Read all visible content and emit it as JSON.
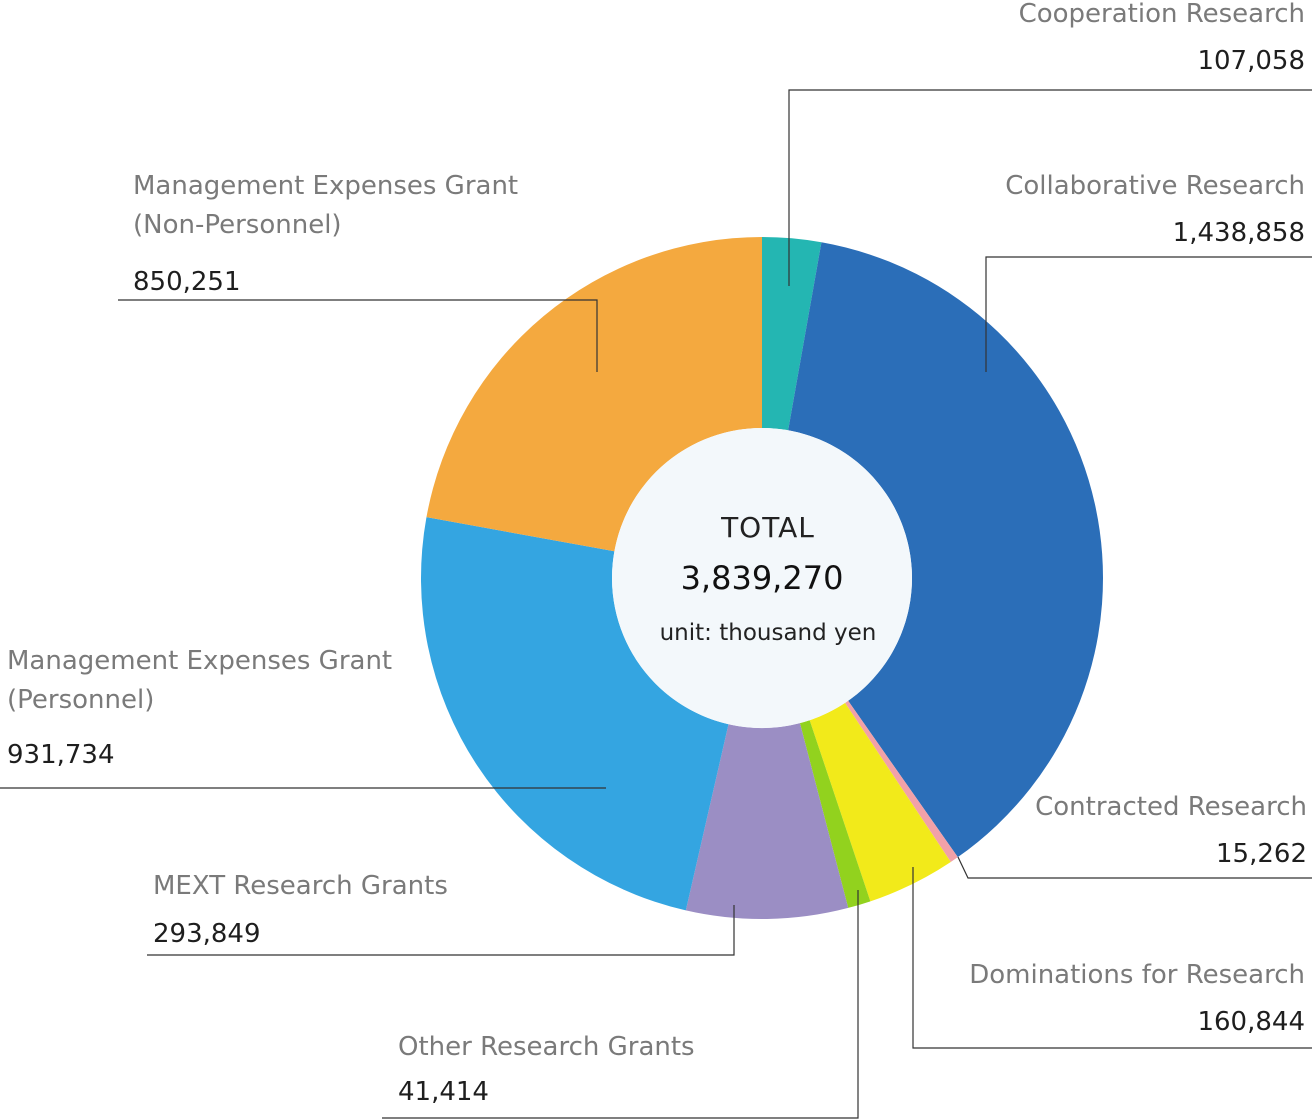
{
  "chart_data": {
    "type": "pie",
    "donut": true,
    "center": {
      "title": "TOTAL",
      "total": "3,839,270",
      "unit": "unit: thousand yen"
    },
    "slices": [
      {
        "name": "Cooperation Research",
        "value": 107058,
        "display": "107,058",
        "color": "#24b6b2"
      },
      {
        "name": "Collaborative Research",
        "value": 1438858,
        "display": "1,438,858",
        "color": "#2b6eb8"
      },
      {
        "name": "Contracted Research",
        "value": 15262,
        "display": "15,262",
        "color": "#f2a1a8"
      },
      {
        "name": "Dominations for Research",
        "value": 160844,
        "display": "160,844",
        "color": "#f2ea1a"
      },
      {
        "name": "Other Research Grants",
        "value": 41414,
        "display": "41,414",
        "color": "#92d21e"
      },
      {
        "name": "MEXT Research Grants",
        "value": 293849,
        "display": "293,849",
        "color": "#9b8ec4"
      },
      {
        "name": "Management Expenses Grant\n(Personnel)",
        "value": 931734,
        "display": "931,734",
        "color": "#34a5e1"
      },
      {
        "name": "Management Expenses Grant\n(Non-Personnel)",
        "value": 850251,
        "display": "850,251",
        "color": "#f4a93f"
      }
    ]
  }
}
